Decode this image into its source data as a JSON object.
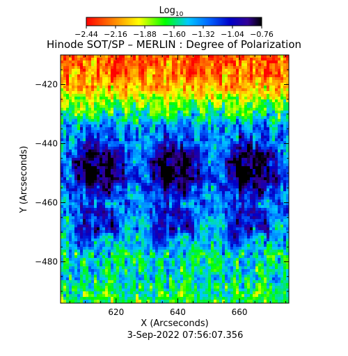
{
  "chart_data": {
    "type": "heatmap",
    "title": "Hinode SOT/SP – MERLIN : Degree of Polarization",
    "xlabel": "X (Arcseconds)",
    "ylabel": "Y (Arcseconds)",
    "footer": "3-Sep-2022 07:56:07.356",
    "colorbar": {
      "title": "Log",
      "title_subscript": "10",
      "tick_labels": [
        "−2.44",
        "−2.16",
        "−1.88",
        "−1.60",
        "−1.32",
        "−1.04",
        "−0.76"
      ],
      "range": [
        -2.44,
        -0.76
      ],
      "colormap": [
        "#ff0000",
        "#ff7f00",
        "#ffff00",
        "#00ff00",
        "#00c8ff",
        "#0064ff",
        "#0000c8",
        "#320096",
        "#000000"
      ]
    },
    "xlim": [
      602,
      676
    ],
    "ylim": [
      -494,
      -410
    ],
    "xticks": [
      620,
      640,
      660
    ],
    "xtick_labels": [
      "620",
      "640",
      "660"
    ],
    "yticks": [
      -420,
      -440,
      -460,
      -480
    ],
    "ytick_labels": [
      "−420",
      "−440",
      "−460",
      "−480"
    ],
    "map_structure": {
      "repeat_tiles_x": 3,
      "features": [
        {
          "region": "top band",
          "y_range": [
            -432,
            -410
          ],
          "level": "low (red/orange)"
        },
        {
          "region": "central dark patch per tile",
          "center_y": -450,
          "level": "high (dark blue/purple)"
        },
        {
          "region": "lower dark patch per tile",
          "center_y": -470,
          "level": "medium-high (blue)"
        },
        {
          "region": "bottom region",
          "y_range": [
            -494,
            -478
          ],
          "level": "mixed (green/cyan)"
        }
      ]
    }
  }
}
